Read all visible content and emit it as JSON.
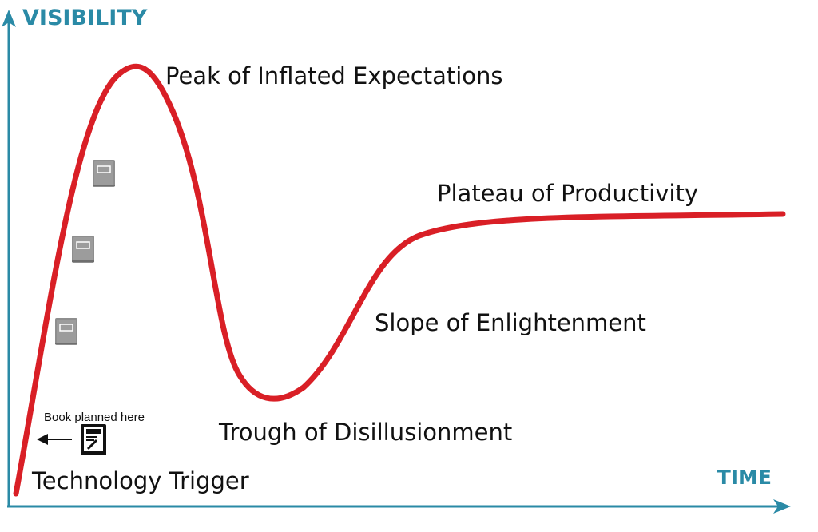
{
  "axes": {
    "y_title": "VISIBILITY",
    "x_title": "TIME",
    "color": "#2a8aa6"
  },
  "curve": {
    "color": "#d91f26"
  },
  "phases": {
    "peak": "Peak of Inflated Expectations",
    "plateau": "Plateau of Productivity",
    "slope": "Slope of Enlightenment",
    "trough": "Trough of Disillusionment",
    "trigger": "Technology Trigger"
  },
  "annotation": {
    "note": "Book planned here"
  },
  "icons": {
    "book_gray": "book-icon",
    "book_black": "book-pen-icon",
    "arrow": "arrow-left-icon"
  }
}
